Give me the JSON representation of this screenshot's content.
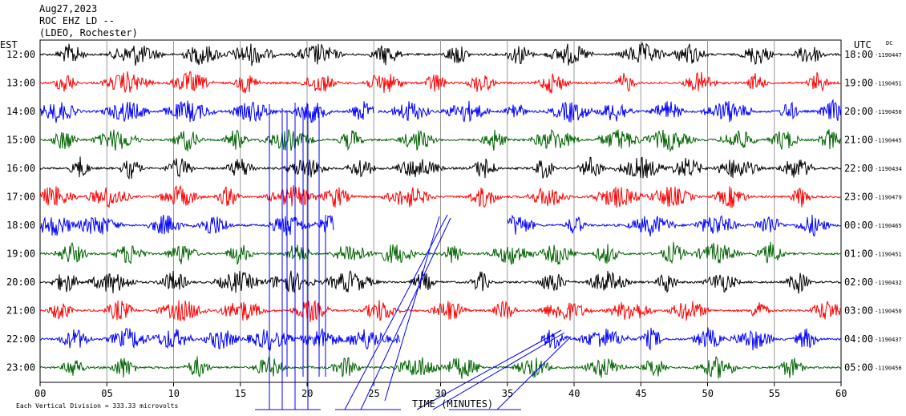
{
  "chart_data": {
    "type": "helicorder",
    "date": "Aug27,2023",
    "station": "ROC EHZ LD --",
    "network": "(LDEO, Rochester)",
    "left_axis_label": "EST",
    "right_axis_label": "UTC",
    "dc_label": "DC",
    "xlabel": "TIME (MINUTES)",
    "scale_note": "Each Vertical Division =  333.33 microvolts",
    "x_ticks": [
      "00",
      "05",
      "10",
      "15",
      "20",
      "25",
      "30",
      "35",
      "40",
      "45",
      "50",
      "55",
      "60"
    ],
    "xlim": [
      0,
      60
    ],
    "grid": true,
    "trace_colors": [
      "#000000",
      "#ff0000",
      "#0000ff",
      "#006400"
    ],
    "rows": [
      {
        "est": "12:00",
        "utc": "18:00",
        "dc": "-1190447",
        "color": "#000000"
      },
      {
        "est": "13:00",
        "utc": "19:00",
        "dc": "-1190451",
        "color": "#ff0000"
      },
      {
        "est": "14:00",
        "utc": "20:00",
        "dc": "-1190450",
        "color": "#0000ff"
      },
      {
        "est": "15:00",
        "utc": "21:00",
        "dc": "-1190445",
        "color": "#006400"
      },
      {
        "est": "16:00",
        "utc": "22:00",
        "dc": "-1190434",
        "color": "#000000"
      },
      {
        "est": "17:00",
        "utc": "23:00",
        "dc": "-1190479",
        "color": "#ff0000"
      },
      {
        "est": "18:00",
        "utc": "00:00",
        "dc": "-1190465",
        "color": "#0000ff"
      },
      {
        "est": "19:00",
        "utc": "01:00",
        "dc": "-1190451",
        "color": "#006400"
      },
      {
        "est": "20:00",
        "utc": "02:00",
        "dc": "-1190432",
        "color": "#000000"
      },
      {
        "est": "21:00",
        "utc": "03:00",
        "dc": "-1190450",
        "color": "#ff0000"
      },
      {
        "est": "22:00",
        "utc": "04:00",
        "dc": "-1190437",
        "color": "#0000ff"
      },
      {
        "est": "23:00",
        "utc": "05:00",
        "dc": "-1190456",
        "color": "#006400"
      }
    ],
    "data_gaps_minutes": [
      {
        "row": "14:00",
        "from": 25.0,
        "to": 25.3
      },
      {
        "row": "18:00",
        "from": 22.0,
        "to": 35.0
      },
      {
        "row": "22:00",
        "from": 27.0,
        "to": 37.5
      }
    ]
  }
}
